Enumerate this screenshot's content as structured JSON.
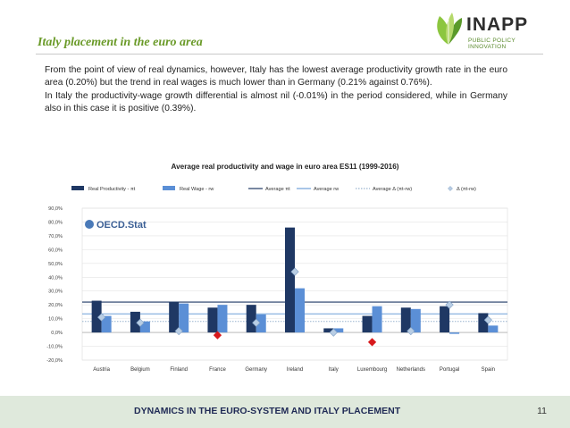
{
  "header": {
    "title": "Italy placement in the euro area",
    "logo_name": "INAPP",
    "logo_tagline": "PUBLIC POLICY INNOVATION"
  },
  "body": {
    "paragraph1": "From the point of view of real dynamics, however, Italy has the lowest average productivity growth rate in the euro area (0.20%) but the trend in real wages is much lower than in Germany (0.21% against 0.76%).",
    "paragraph2": "In Italy the productivity-wage growth differential is almost nil (-0.01%) in the period considered, while in Germany also in this case it is positive (0.39%)."
  },
  "footer": {
    "text": "DYNAMICS IN THE EURO-SYSTEM AND ITALY PLACEMENT",
    "page_number": "11"
  },
  "chart_data": {
    "type": "bar",
    "title": "Average real productivity and wage in euro area ES11 (1999-2016)",
    "watermark": "OECD.Stat",
    "categories": [
      "Austria",
      "Belgium",
      "Finland",
      "France",
      "Germany",
      "Ireland",
      "Italy",
      "Luxembourg",
      "Netherlands",
      "Portugal",
      "Spain"
    ],
    "ylim": [
      -20,
      90
    ],
    "yticks": [
      -20,
      -10,
      0,
      10,
      20,
      30,
      40,
      50,
      60,
      70,
      80,
      90
    ],
    "ytick_labels": [
      "-20,0%",
      "-10,0%",
      "0,0%",
      "10,0%",
      "20,0%",
      "30,0%",
      "40,0%",
      "50,0%",
      "60,0%",
      "70,0%",
      "80,0%",
      "90,0%"
    ],
    "legend_position": "top",
    "series": [
      {
        "name": "Real Productivity - πt",
        "kind": "bar",
        "color": "#1f3864",
        "values": [
          23,
          15,
          22,
          18,
          20,
          76,
          3,
          12,
          18,
          19,
          14
        ]
      },
      {
        "name": "Real Wage - rw",
        "kind": "bar",
        "color": "#5b8fd6",
        "values": [
          12,
          8,
          21,
          20,
          13,
          32,
          3,
          19,
          17,
          -1,
          5
        ]
      },
      {
        "name": "Average πt",
        "kind": "hline",
        "color": "#1f3864",
        "value": 22
      },
      {
        "name": "Average rw",
        "kind": "hline",
        "color": "#6fa0d8",
        "value": 13.5
      },
      {
        "name": "Average Δ (πt-rw)",
        "kind": "hline",
        "color": "#9ab4cf",
        "value": 8
      },
      {
        "name": "Δ (πt-rw)",
        "kind": "point",
        "color": "#b8cde4",
        "values": [
          11,
          7,
          1,
          -2,
          7,
          44,
          0,
          -7,
          1,
          20,
          9
        ]
      }
    ],
    "negative_point_color": "#d7191c"
  }
}
